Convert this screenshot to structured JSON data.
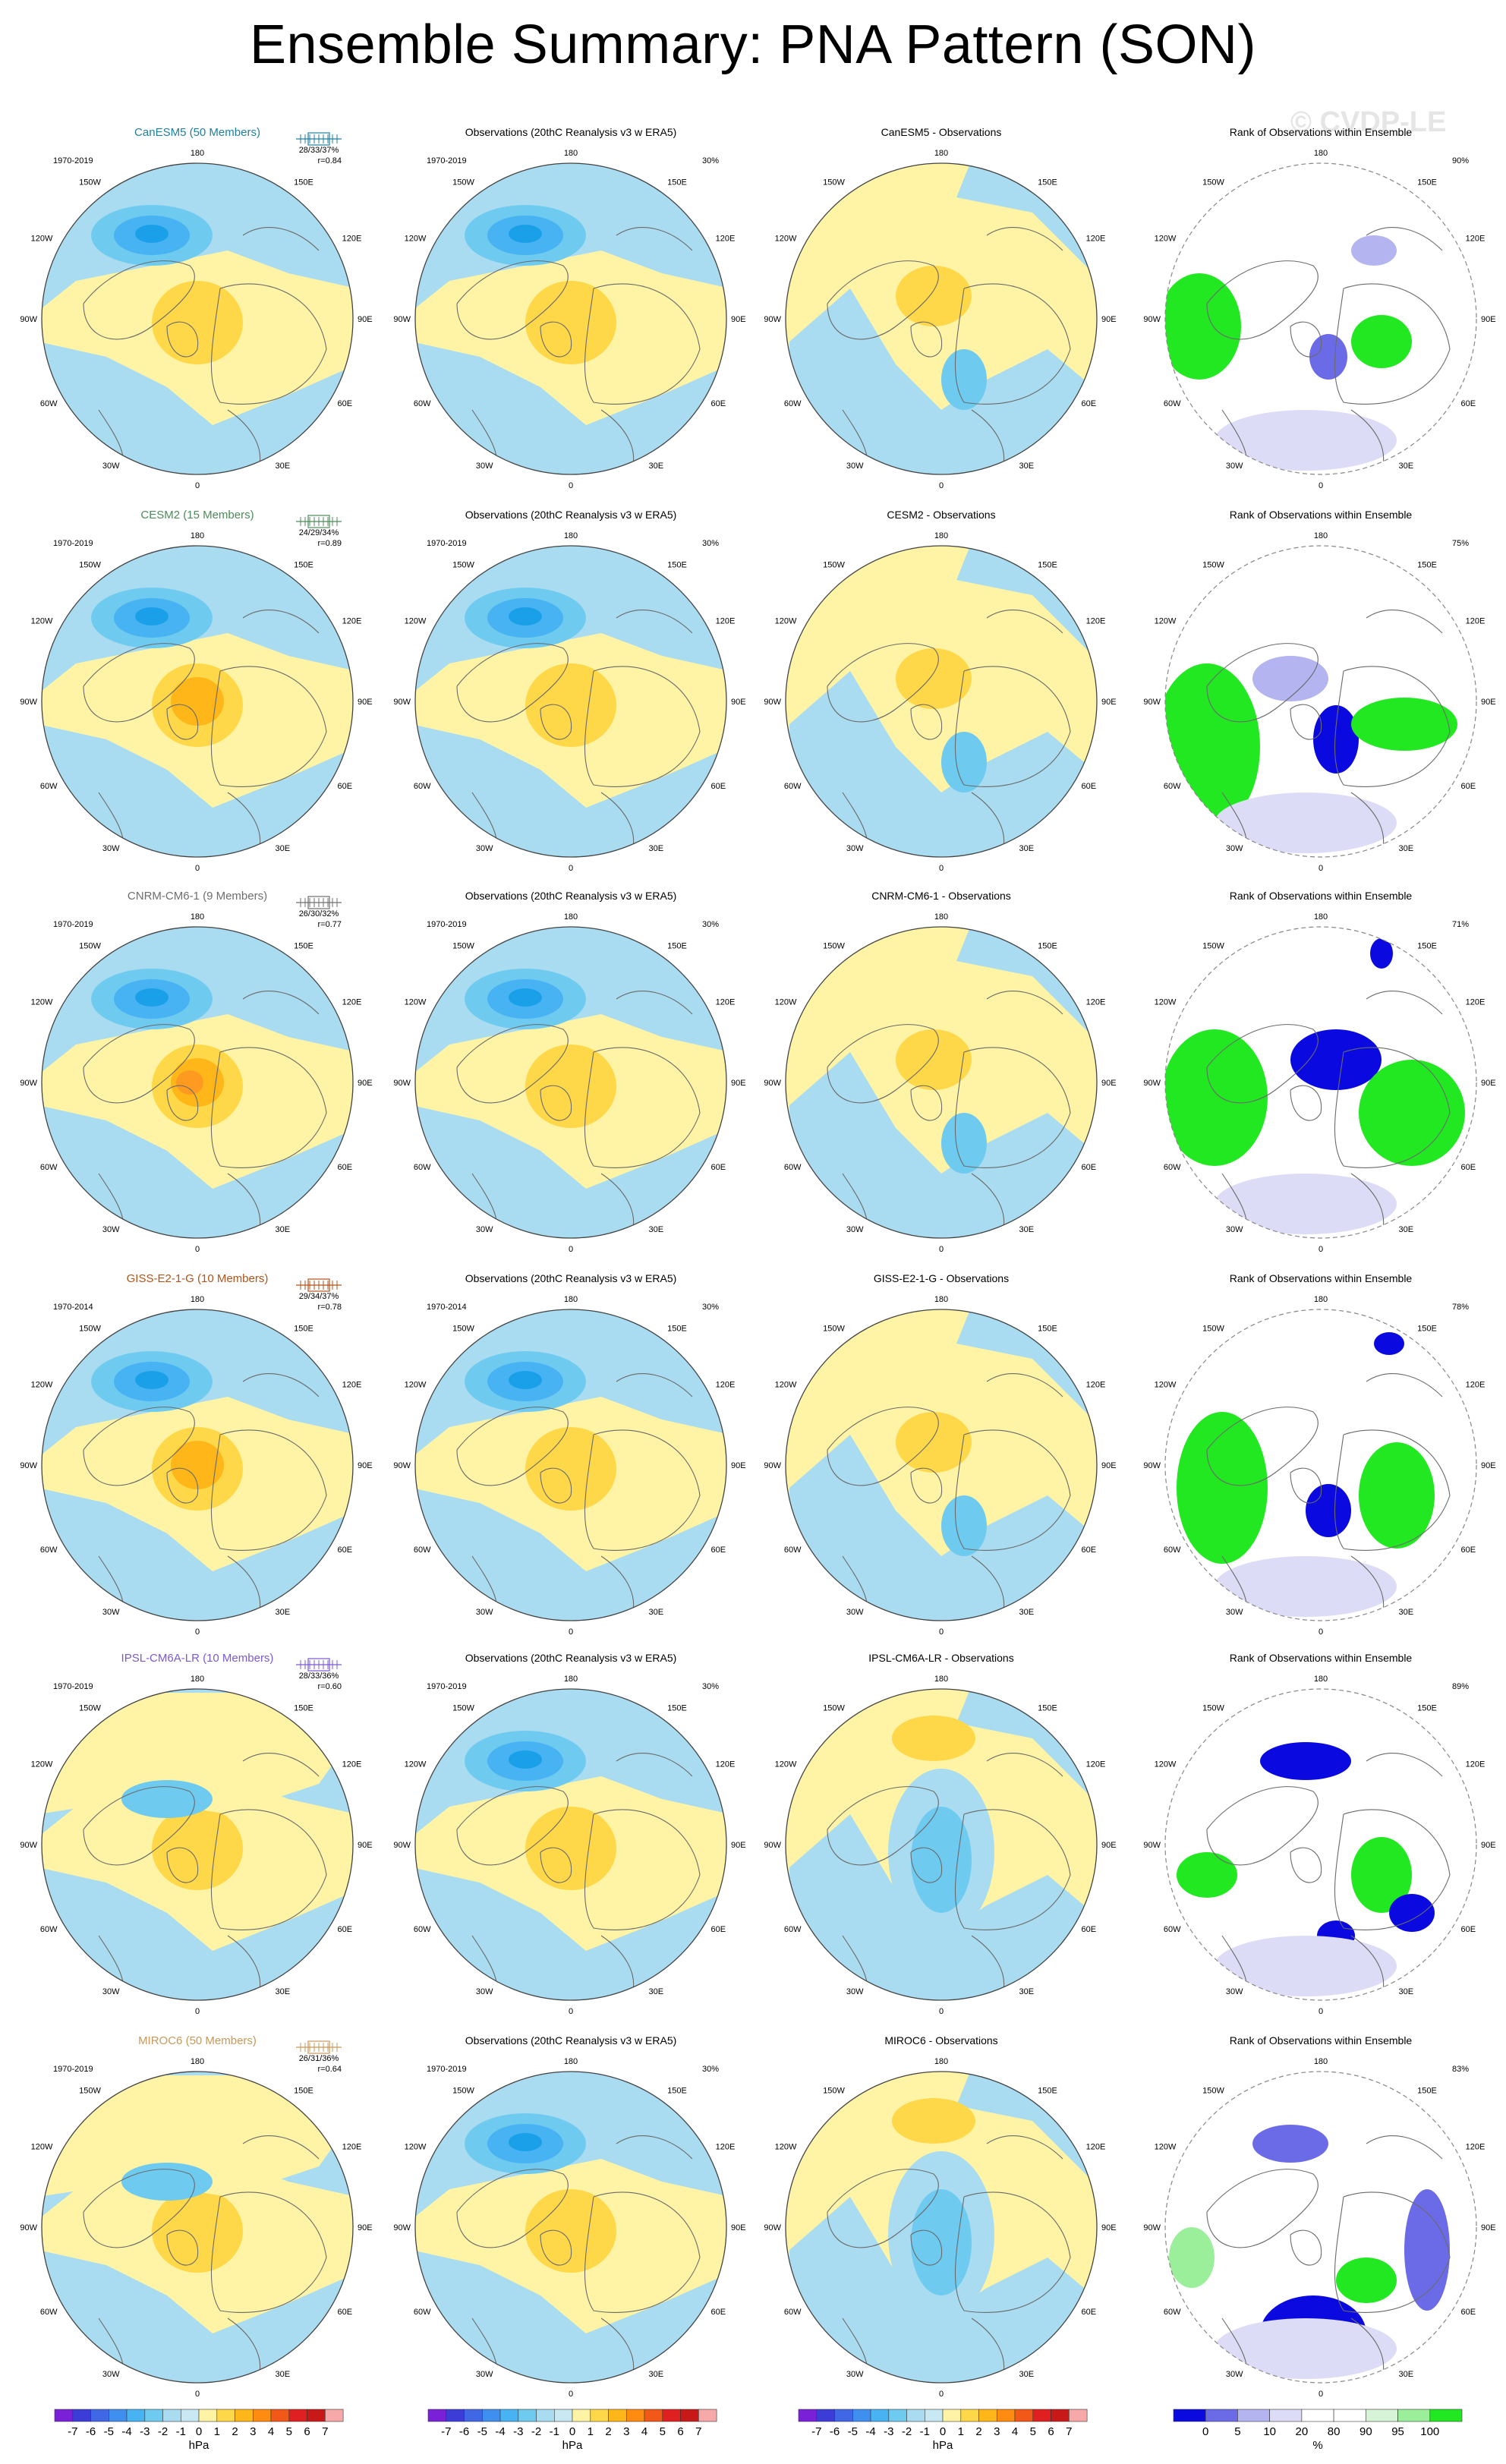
{
  "title": "Ensemble Summary: PNA Pattern (SON)",
  "watermark": "© CVDP-LE",
  "column_titles": {
    "obs": "Observations (20thC Reanalysis v3 w ERA5)",
    "rank": "Rank of Observations within Ensemble"
  },
  "rows": [
    {
      "model": "CanESM5 (50 Members)",
      "model_color": "#1e7fa0",
      "period": "1970-2019",
      "stats": "28/33/37%",
      "r": "r=0.84",
      "obs_pct": "30%",
      "diff_title": "CanESM5 - Observations",
      "rank_pct": "90%"
    },
    {
      "model": "CESM2 (15 Members)",
      "model_color": "#4e8a5b",
      "period": "1970-2019",
      "stats": "24/29/34%",
      "r": "r=0.89",
      "obs_pct": "30%",
      "diff_title": "CESM2 - Observations",
      "rank_pct": "75%"
    },
    {
      "model": "CNRM-CM6-1 (9 Members)",
      "model_color": "#6e6e6e",
      "period": "1970-2019",
      "stats": "26/30/32%",
      "r": "r=0.77",
      "obs_pct": "30%",
      "diff_title": "CNRM-CM6-1 - Observations",
      "rank_pct": "71%"
    },
    {
      "model": "GISS-E2-1-G (10 Members)",
      "model_color": "#b0531a",
      "period": "1970-2014",
      "stats": "29/34/37%",
      "r": "r=0.78",
      "obs_pct": "30%",
      "diff_title": "GISS-E2-1-G - Observations",
      "rank_pct": "78%"
    },
    {
      "model": "IPSL-CM6A-LR (10 Members)",
      "model_color": "#7a58d8",
      "period": "1970-2019",
      "stats": "28/33/36%",
      "r": "r=0.60",
      "obs_pct": "30%",
      "diff_title": "IPSL-CM6A-LR - Observations",
      "rank_pct": "89%"
    },
    {
      "model": "MIROC6 (50 Members)",
      "model_color": "#c8985a",
      "period": "1970-2019",
      "stats": "26/31/36%",
      "r": "r=0.64",
      "obs_pct": "30%",
      "diff_title": "MIROC6 - Observations",
      "rank_pct": "83%"
    }
  ],
  "lon_labels": [
    "180",
    "150W",
    "150E",
    "120W",
    "120E",
    "90W",
    "90E",
    "60W",
    "60E",
    "30W",
    "30E",
    "0"
  ],
  "colorbar_hpa": {
    "ticks": [
      "-7",
      "-6",
      "-5",
      "-4",
      "-3",
      "-2",
      "-1",
      "0",
      "1",
      "2",
      "3",
      "4",
      "5",
      "6",
      "7"
    ],
    "unit": "hPa",
    "colors": [
      "#7a20d8",
      "#3c3cd8",
      "#3f67e6",
      "#3f8ff0",
      "#47b3f2",
      "#6fcaf0",
      "#a9dcf0",
      "#c8e8f4",
      "#fff4a6",
      "#ffd84a",
      "#ffb619",
      "#ff8c10",
      "#f25818",
      "#e02020",
      "#c81818",
      "#f7a9a9"
    ]
  },
  "colorbar_rank": {
    "ticks": [
      "0",
      "5",
      "10",
      "20",
      "80",
      "90",
      "95",
      "100"
    ],
    "unit": "%",
    "colors": [
      "#0a0ae0",
      "#6b6be8",
      "#b4b4f0",
      "#dcdcf6",
      "#ffffff",
      "#ffffff",
      "#d8f4d8",
      "#9bef9b",
      "#22e822"
    ]
  }
}
